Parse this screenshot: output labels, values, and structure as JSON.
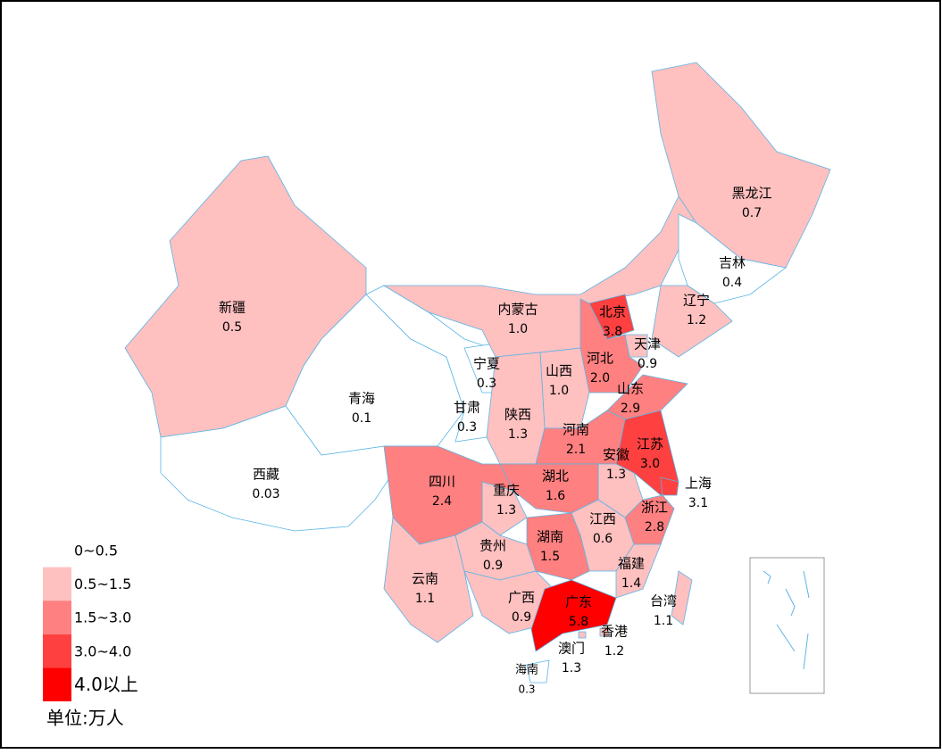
{
  "chart_data": {
    "type": "choropleth",
    "regions": [
      "新疆",
      "西藏",
      "青海",
      "甘肃",
      "宁夏",
      "内蒙古",
      "黑龙江",
      "吉林",
      "辽宁",
      "北京",
      "天津",
      "河北",
      "山西",
      "陕西",
      "山东",
      "河南",
      "江苏",
      "安徽",
      "上海",
      "湖北",
      "重庆",
      "四川",
      "浙江",
      "江西",
      "湖南",
      "贵州",
      "云南",
      "福建",
      "广西",
      "广东",
      "台湾",
      "香港",
      "澳门",
      "海南"
    ],
    "values": [
      0.5,
      0.03,
      0.1,
      0.3,
      0.3,
      1.0,
      0.7,
      0.4,
      1.2,
      3.8,
      0.9,
      2.0,
      1.0,
      1.3,
      2.9,
      2.1,
      3.0,
      1.3,
      3.1,
      1.6,
      1.3,
      2.4,
      2.8,
      0.6,
      1.5,
      0.9,
      1.1,
      1.4,
      0.9,
      5.8,
      1.1,
      1.2,
      1.3,
      0.3
    ],
    "value_labels": [
      "0.5",
      "0.03",
      "0.1",
      "0.3",
      "0.3",
      "1.0",
      "0.7",
      "0.4",
      "1.2",
      "3.8",
      "0.9",
      "2.0",
      "1.0",
      "1.3",
      "2.9",
      "2.1",
      "3.0",
      "1.3",
      "3.1",
      "1.6",
      "1.3",
      "2.4",
      "2.8",
      "0.6",
      "1.5",
      "0.9",
      "1.1",
      "1.4",
      "0.9",
      "5.8",
      "1.1",
      "1.2",
      "1.3",
      "0.3"
    ],
    "legend": {
      "labels": [
        "0~0.5",
        "0.5~1.5",
        "1.5~3.0",
        "3.0~4.0",
        "4.0以上"
      ],
      "breaks": [
        0,
        0.5,
        1.5,
        3.0,
        4.0
      ],
      "colors": [
        "#ffffff",
        "#ffc0c0",
        "#ff8080",
        "#ff4040",
        "#ff0000"
      ]
    },
    "unit": "单位:万人"
  }
}
